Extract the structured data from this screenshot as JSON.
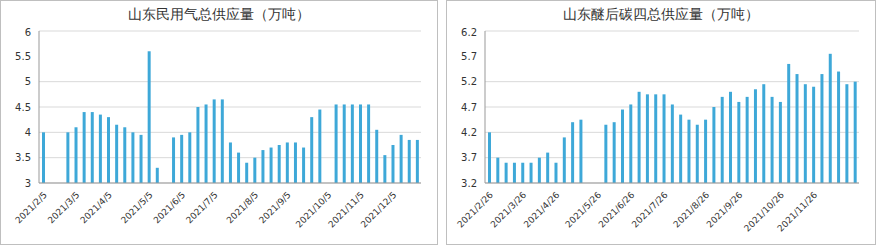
{
  "chart_data": [
    {
      "type": "bar",
      "title": "山东民用气总供应量（万吨）",
      "categories": [
        "2021/2/5",
        null,
        null,
        null,
        "2021/3/5",
        null,
        null,
        null,
        "2021/4/5",
        null,
        null,
        null,
        null,
        "2021/5/5",
        null,
        null,
        null,
        "2021/6/5",
        null,
        null,
        null,
        "2021/7/5",
        null,
        null,
        null,
        null,
        "2021/8/5",
        null,
        null,
        null,
        "2021/9/5",
        null,
        null,
        null,
        null,
        "2021/10/5",
        null,
        null,
        null,
        "2021/11/5",
        null,
        null,
        null,
        "2021/12/5",
        null,
        null,
        null
      ],
      "values": [
        4.0,
        null,
        null,
        4.0,
        4.1,
        4.4,
        4.4,
        4.35,
        4.3,
        4.15,
        4.1,
        4.0,
        3.95,
        5.6,
        3.3,
        null,
        3.9,
        3.95,
        4.0,
        4.5,
        4.55,
        4.65,
        4.65,
        3.8,
        3.6,
        3.4,
        3.5,
        3.65,
        3.7,
        3.75,
        3.8,
        3.8,
        3.7,
        4.3,
        4.45,
        null,
        4.55,
        4.55,
        4.55,
        4.55,
        4.55,
        4.05,
        3.55,
        3.75,
        3.95,
        3.85,
        3.85
      ],
      "color": "#3ea8d8",
      "ylim": [
        3,
        6
      ],
      "yticks": [
        3,
        3.5,
        4,
        4.5,
        5,
        5.5,
        6
      ],
      "grid": true
    },
    {
      "type": "bar",
      "title": "山东醚后碳四总供应量（万吨）",
      "categories": [
        "2021/2/26",
        null,
        null,
        null,
        "2021/3/26",
        null,
        null,
        null,
        "2021/4/26",
        null,
        null,
        null,
        null,
        "2021/5/26",
        null,
        null,
        null,
        "2021/6/26",
        null,
        null,
        null,
        "2021/7/26",
        null,
        null,
        null,
        null,
        "2021/8/26",
        null,
        null,
        null,
        "2021/9/26",
        null,
        null,
        null,
        null,
        "2021/10/26",
        null,
        null,
        null,
        "2021/11/26",
        null,
        null,
        null,
        null,
        null
      ],
      "values": [
        4.2,
        3.7,
        3.6,
        3.6,
        3.6,
        3.6,
        3.7,
        3.8,
        3.6,
        4.1,
        4.4,
        4.45,
        null,
        null,
        4.35,
        4.4,
        4.65,
        4.75,
        5.0,
        4.95,
        4.95,
        4.95,
        4.75,
        4.55,
        4.45,
        4.35,
        4.45,
        4.7,
        4.9,
        5.0,
        4.8,
        4.9,
        5.05,
        5.15,
        4.9,
        4.8,
        5.55,
        5.35,
        5.15,
        5.1,
        5.35,
        5.75,
        5.4,
        5.15,
        5.2
      ],
      "color": "#3ea8d8",
      "ylim": [
        3.2,
        6.2
      ],
      "yticks": [
        3.2,
        3.7,
        4.2,
        4.7,
        5.2,
        5.7,
        6.2
      ],
      "grid": true
    }
  ]
}
